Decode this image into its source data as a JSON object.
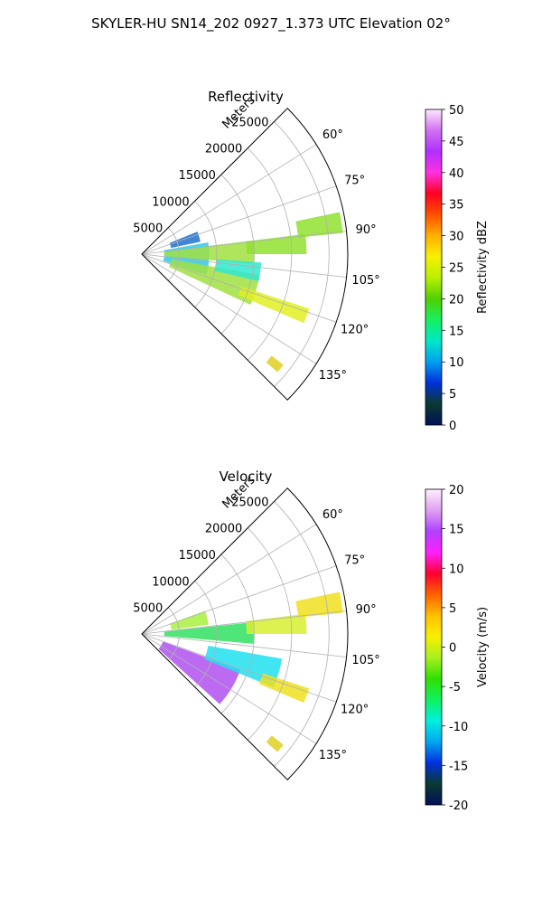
{
  "figure": {
    "suptitle": "SKYLER-HU  SN14_202  0927_1.373 UTC Elevation 02°"
  },
  "chart_data": [
    {
      "type": "polar-sector-heatmap",
      "title": "Reflectivity",
      "radial_label": "Meters",
      "radial_ticks": [
        5000,
        10000,
        15000,
        20000,
        25000
      ],
      "radial_max": 27500,
      "theta_ticks": [
        "60°",
        "75°",
        "90°",
        "105°",
        "120°",
        "135°"
      ],
      "theta_range_deg": [
        45,
        135
      ],
      "grid": true,
      "colorbar": {
        "label": "Reflectivity dBZ",
        "min": 0,
        "max": 50,
        "ticks": [
          0,
          5,
          10,
          15,
          20,
          25,
          30,
          35,
          40,
          45,
          50
        ],
        "stops": [
          "#02105a",
          "#0a3a30",
          "#0030d8",
          "#00a0f0",
          "#00e8c8",
          "#16f060",
          "#50d000",
          "#b8f000",
          "#f8f000",
          "#ffb000",
          "#ff5000",
          "#ff0020",
          "#ff30e0",
          "#b030ff",
          "#d070f0",
          "#ffe8ff"
        ]
      },
      "echoes": [
        {
          "az": [
            80,
            108
          ],
          "r": [
            3000,
            9000
          ],
          "color": "#30c8e8"
        },
        {
          "az": [
            83,
            95
          ],
          "r": [
            3000,
            15000
          ],
          "color": "#a0e040"
        },
        {
          "az": [
            100,
            115
          ],
          "r": [
            4000,
            16000
          ],
          "color": "#a0e040"
        },
        {
          "az": [
            108,
            113
          ],
          "r": [
            14000,
            23500
          ],
          "color": "#e0f020"
        },
        {
          "az": [
            94,
            103
          ],
          "r": [
            10000,
            16000
          ],
          "color": "#30e8d0"
        },
        {
          "az": [
            68,
            78
          ],
          "r": [
            4000,
            8000
          ],
          "color": "#2070d0"
        },
        {
          "az": [
            83,
            90
          ],
          "r": [
            14000,
            22000
          ],
          "color": "#90e030"
        },
        {
          "az": [
            78,
            84
          ],
          "r": [
            21000,
            27000
          ],
          "color": "#90e030"
        },
        {
          "az": [
            128,
            131
          ],
          "r": [
            22000,
            24000
          ],
          "color": "#e0d020"
        }
      ]
    },
    {
      "type": "polar-sector-heatmap",
      "title": "Velocity",
      "radial_label": "Meters",
      "radial_ticks": [
        5000,
        10000,
        15000,
        20000,
        25000
      ],
      "radial_max": 27500,
      "theta_ticks": [
        "60°",
        "75°",
        "90°",
        "105°",
        "120°",
        "135°"
      ],
      "theta_range_deg": [
        45,
        135
      ],
      "grid": true,
      "colorbar": {
        "label": "Velocity (m/s)",
        "min": -20,
        "max": 20,
        "ticks": [
          -20,
          -15,
          -10,
          -5,
          0,
          5,
          10,
          15,
          20
        ],
        "stops": [
          "#02105a",
          "#0a3a30",
          "#0030e0",
          "#00a8f0",
          "#00f0e0",
          "#10f060",
          "#30e000",
          "#a8f020",
          "#f8f000",
          "#ffc000",
          "#ff6000",
          "#ff0030",
          "#ff20ff",
          "#b040ff",
          "#e0a0f0",
          "#fff0ff"
        ]
      },
      "echoes": [
        {
          "az": [
            110,
            132
          ],
          "r": [
            3000,
            14000
          ],
          "color": "#b050f0"
        },
        {
          "az": [
            100,
            112
          ],
          "r": [
            9000,
            19000
          ],
          "color": "#20e0f0"
        },
        {
          "az": [
            84,
            95
          ],
          "r": [
            3000,
            15000
          ],
          "color": "#30e060"
        },
        {
          "az": [
            70,
            82
          ],
          "r": [
            4000,
            9000
          ],
          "color": "#a8f040"
        },
        {
          "az": [
            108,
            113
          ],
          "r": [
            17000,
            23500
          ],
          "color": "#f0e020"
        },
        {
          "az": [
            83,
            90
          ],
          "r": [
            14000,
            22000
          ],
          "color": "#d8f030"
        },
        {
          "az": [
            78,
            84
          ],
          "r": [
            21000,
            27000
          ],
          "color": "#f0e020"
        },
        {
          "az": [
            128,
            131
          ],
          "r": [
            22000,
            24000
          ],
          "color": "#e0d020"
        }
      ]
    }
  ]
}
